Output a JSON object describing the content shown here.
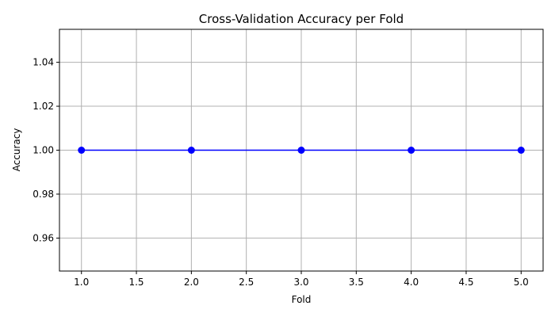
{
  "chart_data": {
    "type": "line",
    "title": "Cross-Validation Accuracy per Fold",
    "xlabel": "Fold",
    "ylabel": "Accuracy",
    "series": [
      {
        "x": [
          1,
          2,
          3,
          4,
          5
        ],
        "values": [
          1.0,
          1.0,
          1.0,
          1.0,
          1.0
        ],
        "color": "#0000ff",
        "marker": "circle"
      }
    ],
    "xlim": [
      0.8,
      5.2
    ],
    "ylim": [
      0.945,
      1.055
    ],
    "xticks": [
      "1.0",
      "1.5",
      "2.0",
      "2.5",
      "3.0",
      "3.5",
      "4.0",
      "4.5",
      "5.0"
    ],
    "yticks": [
      "0.96",
      "0.98",
      "1.00",
      "1.02",
      "1.04"
    ],
    "grid": true
  }
}
